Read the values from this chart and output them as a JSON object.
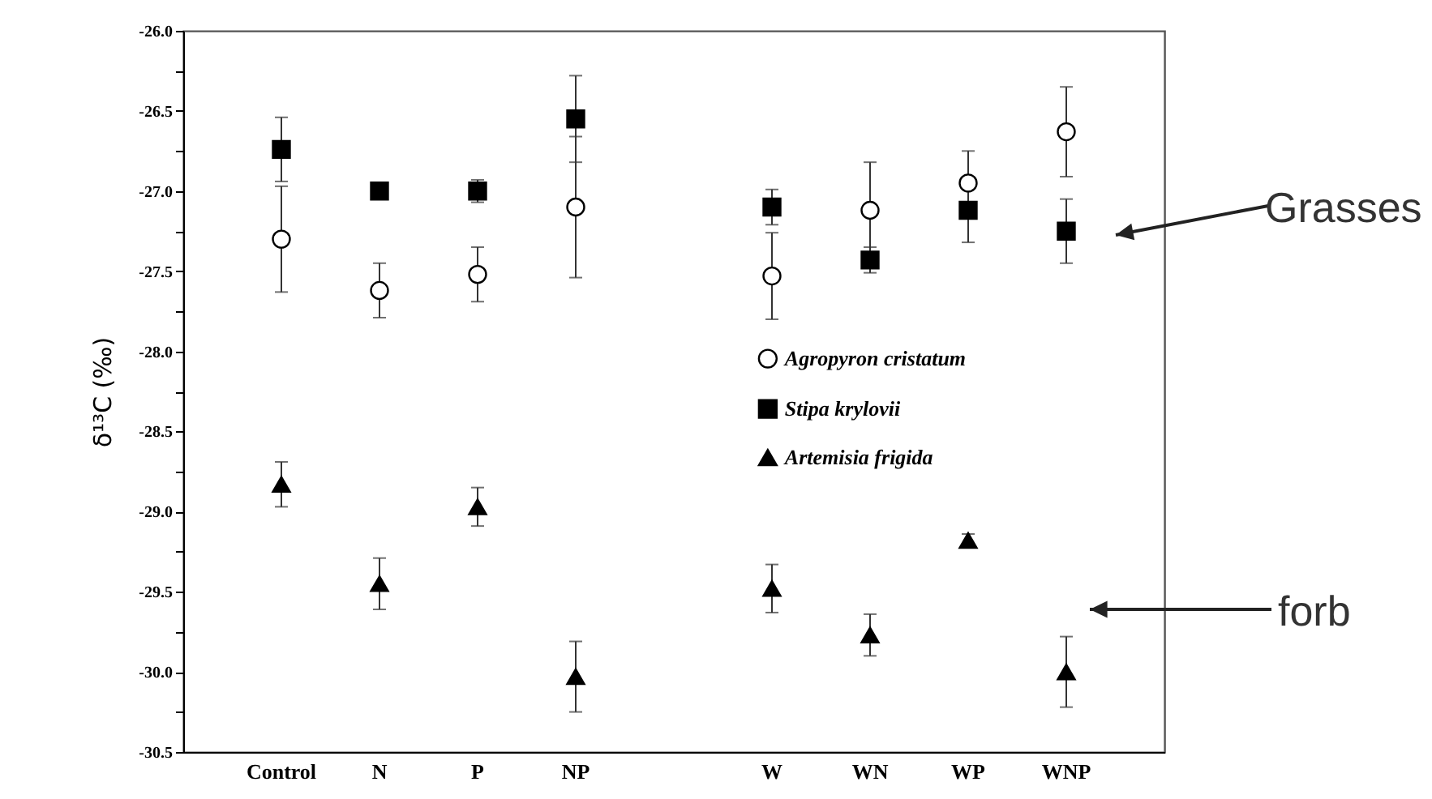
{
  "chart_data": {
    "type": "scatter",
    "ylabel": "δ¹³C (‰)",
    "categories": [
      "Control",
      "N",
      "P",
      "NP",
      null,
      "W",
      "WN",
      "WP",
      "WNP"
    ],
    "series": [
      {
        "name": "Agropyron cristatum",
        "color": "#000000",
        "marker": "circle",
        "values": [
          -27.3,
          -27.62,
          -27.52,
          -27.1,
          null,
          -27.53,
          -27.12,
          -26.95,
          -26.63
        ],
        "errors": [
          0.33,
          0.17,
          0.17,
          0.44,
          null,
          0.27,
          0.3,
          0.2,
          0.28
        ]
      },
      {
        "name": "Stipa krylovii",
        "color": "#000000",
        "marker": "square",
        "values": [
          -26.74,
          -27.0,
          -27.0,
          -26.55,
          null,
          -27.1,
          -27.43,
          -27.12,
          -27.25
        ],
        "errors": [
          0.2,
          null,
          0.07,
          0.27,
          null,
          0.11,
          0.08,
          0.2,
          0.2
        ]
      },
      {
        "name": "Artemisia frigida",
        "color": "#000000",
        "marker": "triangle",
        "values": [
          -28.83,
          -29.45,
          -28.97,
          -30.03,
          null,
          -29.48,
          -29.77,
          -29.18,
          -30.0
        ],
        "errors": [
          0.14,
          0.16,
          0.12,
          0.22,
          null,
          0.15,
          0.13,
          0.04,
          0.22
        ]
      }
    ],
    "ylim": [
      -30.5,
      -26.0
    ],
    "yticks": [
      {
        "value": -26.0,
        "label": "-26.0"
      },
      {
        "value": -26.25,
        "label": null
      },
      -26.5,
      {
        "value": -26.75,
        "label": null
      },
      {
        "value": -27.0,
        "label": "-27.0"
      },
      {
        "value": -27.25,
        "label": null
      },
      -27.5,
      {
        "value": -27.75,
        "label": null
      },
      {
        "value": -28.0,
        "label": "-28.0"
      },
      {
        "value": -28.25,
        "label": null
      },
      -28.5,
      {
        "value": -28.75,
        "label": null
      },
      {
        "value": -29.0,
        "label": "-29.0"
      },
      {
        "value": -29.25,
        "label": null
      },
      -29.5,
      {
        "value": -29.75,
        "label": null
      },
      {
        "value": -30.0,
        "label": "-30.0"
      },
      {
        "value": -30.25,
        "label": null
      },
      -30.5
    ],
    "grid": false,
    "legend": "right",
    "annotations": [
      "Grasses",
      "forb"
    ]
  }
}
